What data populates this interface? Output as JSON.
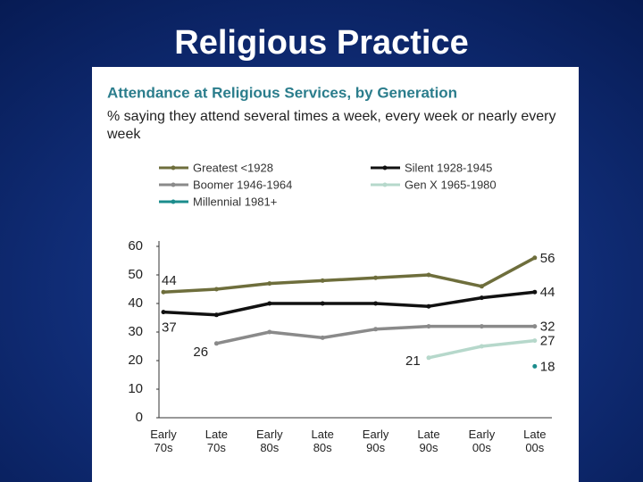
{
  "slide_title": "Religious Practice",
  "chart_data": {
    "type": "line",
    "title": "Attendance at Religious Services, by Generation",
    "subtitle": "% saying they attend several times a week, every week or nearly every week",
    "categories": [
      "Early 70s",
      "Late 70s",
      "Early 80s",
      "Late 80s",
      "Early 90s",
      "Late 90s",
      "Early 00s",
      "Late 00s"
    ],
    "series": [
      {
        "name": "Greatest <1928",
        "color": "#6e6e3c",
        "values": [
          44,
          45,
          47,
          48,
          49,
          50,
          46,
          56
        ]
      },
      {
        "name": "Silent 1928-1945",
        "color": "#111111",
        "values": [
          37,
          36,
          40,
          40,
          40,
          39,
          42,
          44
        ]
      },
      {
        "name": "Boomer 1946-1964",
        "color": "#8a8a8a",
        "values": [
          null,
          26,
          30,
          28,
          31,
          32,
          32,
          32
        ]
      },
      {
        "name": "Gen X 1965-1980",
        "color": "#b6d8cb",
        "values": [
          null,
          null,
          null,
          null,
          null,
          21,
          25,
          27
        ]
      },
      {
        "name": "Millennial 1981+",
        "color": "#1b8c8c",
        "values": [
          null,
          null,
          null,
          null,
          null,
          null,
          null,
          18
        ]
      }
    ],
    "ylim": [
      0,
      60
    ],
    "yticks": [
      0,
      10,
      20,
      30,
      40,
      50,
      60
    ]
  }
}
